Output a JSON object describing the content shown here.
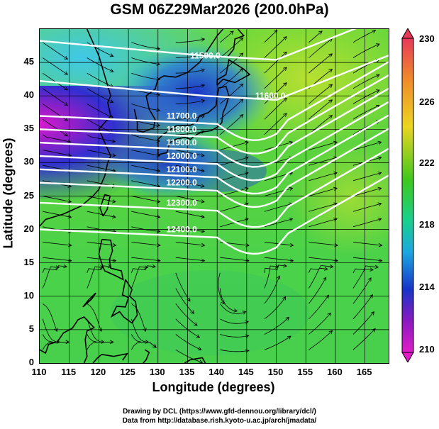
{
  "title": "GSM 06Z29Mar2026 (200.0hPa)",
  "xlabel": "Longitude (degrees)",
  "ylabel": "Latitude  (degrees)",
  "x_ticks": [
    "110",
    "115",
    "120",
    "125",
    "130",
    "135",
    "140",
    "145",
    "150",
    "155",
    "160",
    "165"
  ],
  "y_ticks": [
    "0",
    "5",
    "10",
    "15",
    "20",
    "25",
    "30",
    "35",
    "40",
    "45"
  ],
  "colorbar": {
    "labels": [
      "230",
      "226",
      "222",
      "218",
      "214",
      "210"
    ],
    "colors": [
      "#e8385a",
      "#f08a2a",
      "#ecd422",
      "#3fc81c",
      "#18d08c",
      "#1aa8e0",
      "#1834c8",
      "#8a1ac0",
      "#e01cc8"
    ]
  },
  "contour_labels": [
    "11500.0",
    "11600.0",
    "11700.0",
    "11800.0",
    "11900.0",
    "12000.0",
    "12100.0",
    "12200.0",
    "12300.0",
    "12400.0"
  ],
  "credits": [
    "Drawing by DCL (https://www.gfd-dennou.org/library/dcl/)",
    "Data from http://database.rish.kyoto-u.ac.jp/arch/jmadata/"
  ],
  "chart_data": {
    "type": "heatmap",
    "title": "GSM 06Z29Mar2026 (200.0hPa)",
    "xlabel": "Longitude (degrees)",
    "ylabel": "Latitude  (degrees)",
    "xlim": [
      110,
      169
    ],
    "ylim": [
      0,
      50
    ],
    "colorbar_range": [
      210,
      230
    ],
    "contours": [
      {
        "label": "11500.0",
        "lon": 138,
        "lat": 46
      },
      {
        "label": "11600.0",
        "lon": 149,
        "lat": 40
      },
      {
        "label": "11700.0",
        "lon": 134,
        "lat": 37
      },
      {
        "label": "11800.0",
        "lon": 134,
        "lat": 35
      },
      {
        "label": "11900.0",
        "lon": 134,
        "lat": 33
      },
      {
        "label": "12000.0",
        "lon": 134,
        "lat": 31
      },
      {
        "label": "12100.0",
        "lon": 134,
        "lat": 29
      },
      {
        "label": "12200.0",
        "lon": 134,
        "lat": 27
      },
      {
        "label": "12300.0",
        "lon": 134,
        "lat": 24
      },
      {
        "label": "12400.0",
        "lon": 134,
        "lat": 20
      }
    ]
  }
}
